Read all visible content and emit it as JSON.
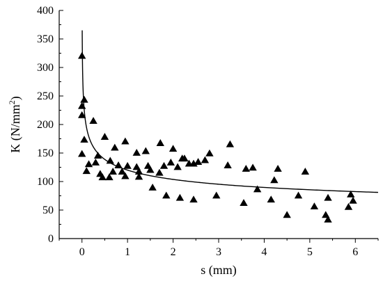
{
  "chart_data": {
    "type": "scatter",
    "xlabel": "s (mm)",
    "ylabel_main": "K (N/mm",
    "ylabel_sup": "2",
    "ylabel_close": ")",
    "xlim": [
      -0.5,
      6.5
    ],
    "ylim": [
      0,
      400
    ],
    "xticks": [
      0,
      1,
      2,
      3,
      4,
      5,
      6
    ],
    "yticks": [
      0,
      50,
      100,
      150,
      200,
      250,
      300,
      350,
      400
    ],
    "grid": false,
    "legend": "none",
    "marker": "triangle",
    "color": "#000000",
    "points": [
      [
        0.0,
        320
      ],
      [
        0.0,
        232
      ],
      [
        0.0,
        216
      ],
      [
        0.05,
        243
      ],
      [
        0.05,
        173
      ],
      [
        0.0,
        148
      ],
      [
        0.1,
        118
      ],
      [
        0.15,
        130
      ],
      [
        0.25,
        206
      ],
      [
        0.3,
        133
      ],
      [
        0.35,
        145
      ],
      [
        0.4,
        113
      ],
      [
        0.45,
        107
      ],
      [
        0.5,
        178
      ],
      [
        0.6,
        107
      ],
      [
        0.62,
        136
      ],
      [
        0.68,
        117
      ],
      [
        0.72,
        159
      ],
      [
        0.8,
        128
      ],
      [
        0.88,
        117
      ],
      [
        0.95,
        109
      ],
      [
        0.95,
        170
      ],
      [
        1.0,
        127
      ],
      [
        1.2,
        150
      ],
      [
        1.2,
        125
      ],
      [
        1.25,
        117
      ],
      [
        1.25,
        108
      ],
      [
        1.4,
        153
      ],
      [
        1.45,
        127
      ],
      [
        1.5,
        120
      ],
      [
        1.55,
        89
      ],
      [
        1.7,
        115
      ],
      [
        1.72,
        167
      ],
      [
        1.8,
        127
      ],
      [
        1.85,
        75
      ],
      [
        1.95,
        133
      ],
      [
        2.0,
        157
      ],
      [
        2.1,
        125
      ],
      [
        2.15,
        71
      ],
      [
        2.2,
        140
      ],
      [
        2.25,
        140
      ],
      [
        2.35,
        131
      ],
      [
        2.45,
        131
      ],
      [
        2.45,
        68
      ],
      [
        2.55,
        134
      ],
      [
        2.7,
        137
      ],
      [
        2.8,
        149
      ],
      [
        2.95,
        75
      ],
      [
        3.2,
        128
      ],
      [
        3.25,
        165
      ],
      [
        3.55,
        62
      ],
      [
        3.6,
        122
      ],
      [
        3.75,
        124
      ],
      [
        3.85,
        86
      ],
      [
        4.15,
        68
      ],
      [
        4.22,
        102
      ],
      [
        4.3,
        122
      ],
      [
        4.5,
        41
      ],
      [
        4.75,
        75
      ],
      [
        4.9,
        117
      ],
      [
        5.1,
        56
      ],
      [
        5.35,
        41
      ],
      [
        5.4,
        33
      ],
      [
        5.4,
        71
      ],
      [
        5.85,
        55
      ],
      [
        5.9,
        77
      ],
      [
        5.95,
        66
      ]
    ],
    "fit_curve": {
      "type": "power",
      "a": 120,
      "b": -0.21,
      "x_start": 0.005,
      "x_end": 6.5
    }
  }
}
